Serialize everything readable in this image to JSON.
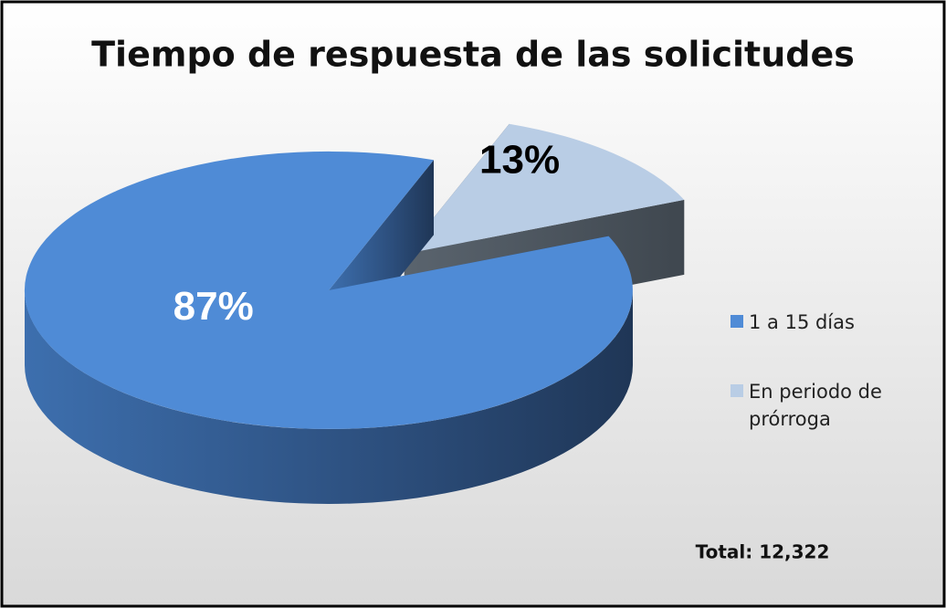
{
  "chart_data": {
    "type": "pie",
    "title": "Tiempo de respuesta de las solicitudes",
    "categories": [
      "1 a 15 días",
      "En periodo de prórroga"
    ],
    "values": [
      87,
      13
    ],
    "value_labels": [
      "87%",
      "13%"
    ],
    "colors": [
      "#4f8bd6",
      "#b9cde5"
    ],
    "annotation": "Total: 12,322",
    "legend": "right"
  }
}
